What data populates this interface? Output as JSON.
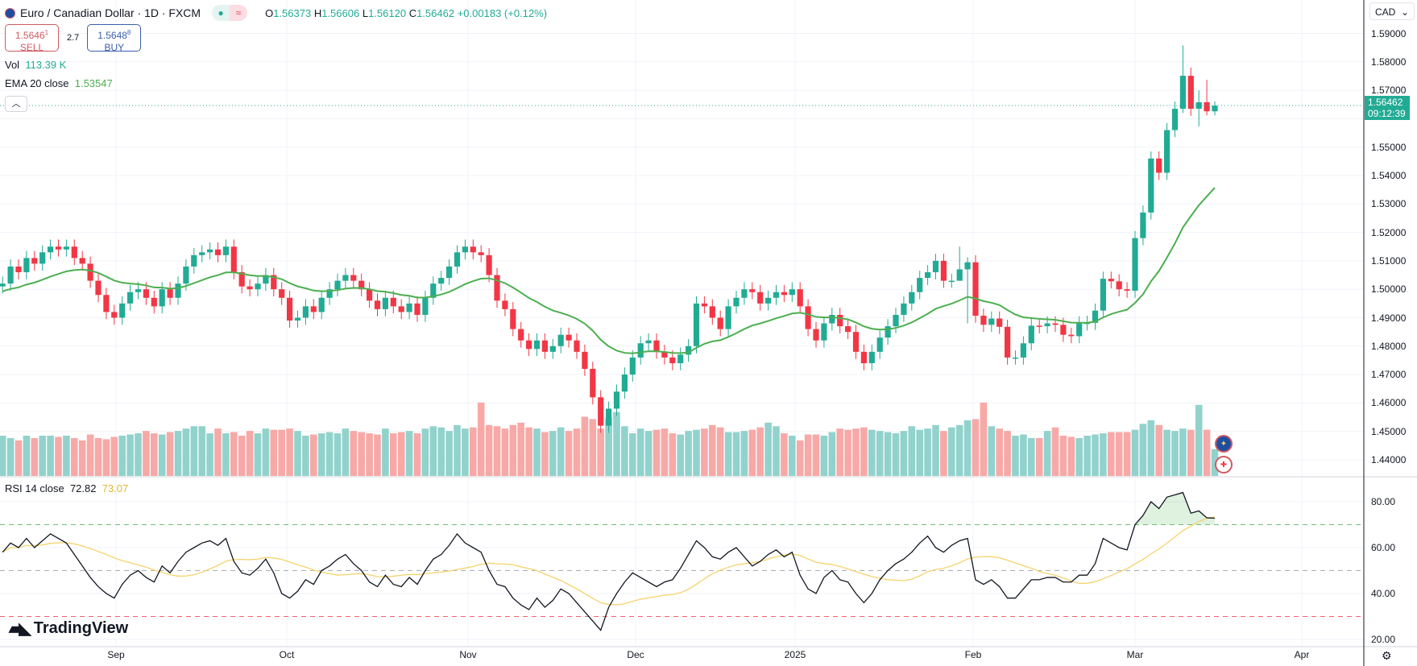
{
  "header": {
    "symbol_title": "Euro / Canadian Dollar · 1D · FXCM",
    "o_label": "O",
    "o": "1.56373",
    "h_label": "H",
    "h": "1.56606",
    "l_label": "L",
    "l": "1.56120",
    "c_label": "C",
    "c": "1.56462",
    "change": "+0.00183 (+0.12%)"
  },
  "trade": {
    "sell_price": "1.5646",
    "sell_sup": "1",
    "sell_label": "SELL",
    "spread": "2.7",
    "buy_price": "1.5648",
    "buy_sup": "8",
    "buy_label": "BUY"
  },
  "legend": {
    "vol_label": "Vol",
    "vol_value": "113.39 K",
    "ema_label": "EMA 20 close",
    "ema_value": "1.53547",
    "rsi_label": "RSI 14 close",
    "rsi_value": "72.82",
    "rsi_ma_value": "73.07"
  },
  "price_axis": {
    "currency": "CAD",
    "ticks": [
      "1.59000",
      "1.58000",
      "1.57000",
      "1.55000",
      "1.54000",
      "1.53000",
      "1.52000",
      "1.51000",
      "1.50000",
      "1.49000",
      "1.48000",
      "1.47000",
      "1.46000",
      "1.45000",
      "1.44000"
    ],
    "current_price": "1.56462",
    "countdown": "09:12:39"
  },
  "rsi_axis": {
    "ticks": [
      "80.00",
      "60.00",
      "40.00",
      "20.00"
    ]
  },
  "time_axis": {
    "labels": [
      "Sep",
      "Oct",
      "Nov",
      "Dec",
      "2025",
      "Feb",
      "Mar",
      "Apr"
    ]
  },
  "brand": "TradingView",
  "colors": {
    "up": "#22ab94",
    "down": "#f23645",
    "ema": "#4caf50",
    "rsi": "#131722",
    "rsi_ma": "#f5d36b"
  },
  "chart_data": {
    "type": "candlestick",
    "title": "Euro / Canadian Dollar · 1D · FXCM",
    "ylim": [
      1.44,
      1.59
    ],
    "close": [
      1.502,
      1.508,
      1.506,
      1.511,
      1.509,
      1.513,
      1.515,
      1.514,
      1.515,
      1.511,
      1.509,
      1.503,
      1.498,
      1.492,
      1.49,
      1.495,
      1.499,
      1.5,
      1.497,
      1.494,
      1.5,
      1.497,
      1.502,
      1.508,
      1.512,
      1.513,
      1.514,
      1.512,
      1.515,
      1.506,
      1.501,
      1.5,
      1.502,
      1.505,
      1.5,
      1.497,
      1.489,
      1.49,
      1.494,
      1.492,
      1.497,
      1.5,
      1.503,
      1.505,
      1.503,
      1.5,
      1.496,
      1.493,
      1.497,
      1.494,
      1.492,
      1.495,
      1.491,
      1.497,
      1.502,
      1.504,
      1.508,
      1.513,
      1.515,
      1.513,
      1.512,
      1.505,
      1.496,
      1.493,
      1.486,
      1.482,
      1.479,
      1.482,
      1.478,
      1.48,
      1.484,
      1.482,
      1.478,
      1.472,
      1.462,
      1.452,
      1.458,
      1.464,
      1.47,
      1.476,
      1.481,
      1.482,
      1.478,
      1.476,
      1.474,
      1.477,
      1.48,
      1.495,
      1.494,
      1.49,
      1.486,
      1.494,
      1.497,
      1.5,
      1.499,
      1.495,
      1.497,
      1.499,
      1.498,
      1.5,
      1.494,
      1.486,
      1.482,
      1.488,
      1.491,
      1.487,
      1.485,
      1.478,
      1.474,
      1.478,
      1.483,
      1.487,
      1.491,
      1.495,
      1.499,
      1.504,
      1.506,
      1.51,
      1.503,
      1.503,
      1.507,
      1.5095,
      1.4907,
      1.4875,
      1.4897,
      1.4868,
      1.476,
      1.476,
      1.481,
      1.4872,
      1.487,
      1.488,
      1.4875,
      1.484,
      1.4835,
      1.488,
      1.4882,
      1.4925,
      1.5037,
      1.5028,
      1.5,
      1.4995,
      1.518,
      1.527,
      1.546,
      1.541,
      1.556,
      1.5635,
      1.5751,
      1.5635,
      1.5658,
      1.5626,
      1.5646
    ],
    "wick_overrides": {
      "120": [
        1.515,
        1.505
      ],
      "121": [
        1.5113,
        1.488
      ],
      "148": [
        1.5858,
        1.562
      ],
      "149": [
        1.578,
        1.561
      ],
      "150": [
        1.57,
        1.5573
      ],
      "151": [
        1.5737,
        1.5612
      ],
      "152": [
        1.5661,
        1.5612
      ]
    },
    "volume_k": [
      170,
      160,
      150,
      170,
      160,
      170,
      170,
      165,
      170,
      160,
      150,
      175,
      160,
      155,
      165,
      170,
      175,
      180,
      190,
      180,
      175,
      185,
      190,
      200,
      210,
      210,
      180,
      200,
      180,
      185,
      170,
      190,
      180,
      200,
      195,
      195,
      200,
      190,
      170,
      175,
      180,
      185,
      180,
      200,
      190,
      185,
      180,
      175,
      200,
      180,
      185,
      190,
      180,
      200,
      210,
      205,
      190,
      215,
      200,
      205,
      310,
      215,
      210,
      200,
      215,
      225,
      205,
      200,
      185,
      190,
      205,
      190,
      200,
      250,
      240,
      200,
      245,
      270,
      210,
      180,
      200,
      190,
      195,
      200,
      180,
      175,
      190,
      195,
      200,
      215,
      205,
      185,
      185,
      190,
      195,
      205,
      225,
      210,
      180,
      170,
      150,
      175,
      175,
      170,
      185,
      200,
      195,
      200,
      205,
      195,
      190,
      185,
      180,
      190,
      210,
      195,
      200,
      215,
      190,
      205,
      215,
      235,
      240,
      310,
      210,
      200,
      190,
      170,
      175,
      160,
      160,
      190,
      205,
      170,
      165,
      160,
      170,
      175,
      180,
      185,
      185,
      185,
      195,
      220,
      235,
      215,
      195,
      190,
      200,
      195,
      300,
      195,
      113.39
    ],
    "rsi": [
      58,
      62,
      60,
      64,
      60,
      63,
      66,
      64,
      62,
      57,
      52,
      47,
      43,
      40,
      38,
      44,
      48,
      50,
      47,
      45,
      52,
      49,
      54,
      58,
      60,
      62,
      63,
      61,
      64,
      54,
      49,
      48,
      51,
      55,
      49,
      40,
      38,
      41,
      46,
      44,
      50,
      52,
      55,
      57,
      53,
      50,
      45,
      43,
      48,
      44,
      43,
      47,
      44,
      50,
      55,
      57,
      61,
      66,
      62,
      60,
      58,
      50,
      44,
      43,
      38,
      35,
      33,
      38,
      34,
      37,
      42,
      40,
      36,
      32,
      28,
      24,
      34,
      40,
      45,
      49,
      47,
      45,
      43,
      45,
      46,
      51,
      57,
      63,
      60,
      56,
      55,
      58,
      60,
      56,
      52,
      54,
      57,
      59,
      56,
      58,
      48,
      42,
      40,
      47,
      50,
      46,
      45,
      40,
      36,
      40,
      46,
      50,
      53,
      55,
      58,
      62,
      65,
      60,
      58,
      61,
      63,
      64,
      46,
      44,
      46,
      43,
      38,
      38,
      42,
      46,
      46,
      47,
      47,
      45,
      45,
      48,
      48,
      53,
      64,
      62,
      60,
      59,
      70,
      74,
      80,
      77,
      82,
      83,
      84,
      75,
      76,
      73,
      72.82
    ],
    "ema_period": 20,
    "rsi_period": 14,
    "rsi_ma_period": 14,
    "rsi_levels": [
      70,
      50,
      30
    ],
    "rsi_ylim": [
      17,
      87
    ]
  }
}
